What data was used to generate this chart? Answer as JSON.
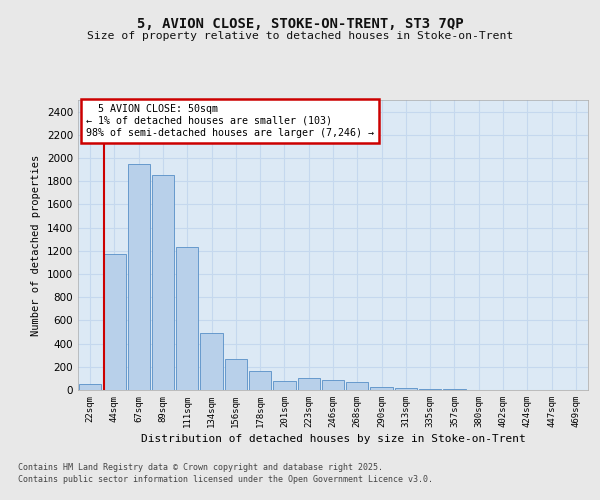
{
  "title": "5, AVION CLOSE, STOKE-ON-TRENT, ST3 7QP",
  "subtitle": "Size of property relative to detached houses in Stoke-on-Trent",
  "xlabel": "Distribution of detached houses by size in Stoke-on-Trent",
  "ylabel": "Number of detached properties",
  "categories": [
    "22sqm",
    "44sqm",
    "67sqm",
    "89sqm",
    "111sqm",
    "134sqm",
    "156sqm",
    "178sqm",
    "201sqm",
    "223sqm",
    "246sqm",
    "268sqm",
    "290sqm",
    "313sqm",
    "335sqm",
    "357sqm",
    "380sqm",
    "402sqm",
    "424sqm",
    "447sqm",
    "469sqm"
  ],
  "values": [
    50,
    1175,
    1950,
    1850,
    1230,
    490,
    270,
    165,
    80,
    100,
    85,
    65,
    30,
    15,
    10,
    5,
    4,
    4,
    3,
    2,
    2
  ],
  "bar_color": "#b8d0ea",
  "bar_edge_color": "#6699cc",
  "marker_line_color": "#cc0000",
  "annotation_line1": "  5 AVION CLOSE: 50sqm",
  "annotation_line2": "← 1% of detached houses are smaller (103)",
  "annotation_line3": "98% of semi-detached houses are larger (7,246) →",
  "annotation_box_color": "#ffffff",
  "annotation_box_edge_color": "#cc0000",
  "ylim": [
    0,
    2500
  ],
  "yticks": [
    0,
    200,
    400,
    600,
    800,
    1000,
    1200,
    1400,
    1600,
    1800,
    2000,
    2200,
    2400
  ],
  "grid_color": "#c5d8ee",
  "plot_bg_color": "#dce9f5",
  "fig_bg_color": "#e8e8e8",
  "footer_line1": "Contains HM Land Registry data © Crown copyright and database right 2025.",
  "footer_line2": "Contains public sector information licensed under the Open Government Licence v3.0."
}
